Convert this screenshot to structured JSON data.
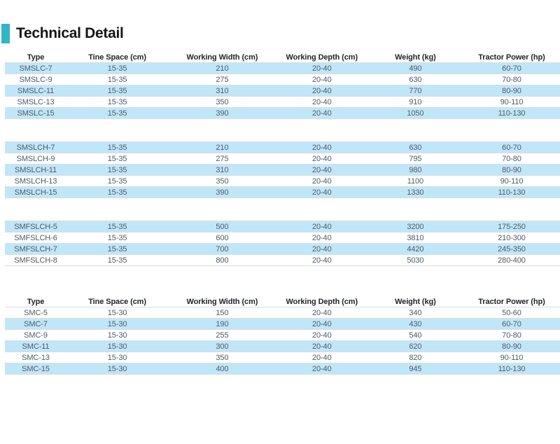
{
  "title": "Technical Detail",
  "colors": {
    "accent": "#31b6c5",
    "row_highlight": "#c0e6f9",
    "row_border": "#dcdcdc",
    "header_text": "#20262b",
    "body_text": "#4e5b66"
  },
  "tables": [
    {
      "name": "sm-slc-series-specs",
      "headers": [
        "Type",
        "Tine Space (cm)",
        "Working Width (cm)",
        "Working Depth (cm)",
        "Weight (kg)",
        "Tractor Power (hp)"
      ],
      "groups": [
        {
          "first_shade": "blue",
          "rows": [
            [
              "SMSLC-7",
              "15-35",
              "210",
              "20-40",
              "490",
              "60-70"
            ],
            [
              "SMSLC-9",
              "15-35",
              "275",
              "20-40",
              "630",
              "70-80"
            ],
            [
              "SMSLC-11",
              "15-35",
              "310",
              "20-40",
              "770",
              "80-90"
            ],
            [
              "SMSLC-13",
              "15-35",
              "350",
              "20-40",
              "910",
              "90-110"
            ],
            [
              "SMSLC-15",
              "15-35",
              "390",
              "20-40",
              "1050",
              "110-130"
            ]
          ]
        },
        {
          "first_shade": "blue",
          "rows": [
            [
              "SMSLCH-7",
              "15-35",
              "210",
              "20-40",
              "630",
              "60-70"
            ],
            [
              "SMSLCH-9",
              "15-35",
              "275",
              "20-40",
              "795",
              "70-80"
            ],
            [
              "SMSLCH-11",
              "15-35",
              "310",
              "20-40",
              "980",
              "80-90"
            ],
            [
              "SMSLCH-13",
              "15-35",
              "350",
              "20-40",
              "1100",
              "90-110"
            ],
            [
              "SMSLCH-15",
              "15-35",
              "390",
              "20-40",
              "1330",
              "110-130"
            ]
          ]
        },
        {
          "first_shade": "blue",
          "rows": [
            [
              "SMFSLCH-5",
              "15-35",
              "500",
              "20-40",
              "3200",
              "175-250"
            ],
            [
              "SMFSLCH-6",
              "15-35",
              "600",
              "20-40",
              "3810",
              "210-300"
            ],
            [
              "SMFSLCH-7",
              "15-35",
              "700",
              "20-40",
              "4420",
              "245-350"
            ],
            [
              "SMFSLCH-8",
              "15-35",
              "800",
              "20-40",
              "5030",
              "280-400"
            ]
          ]
        }
      ]
    },
    {
      "name": "smc-series-specs",
      "headers": [
        "Type",
        "Tine Space (cm)",
        "Working Width (cm)",
        "Working Depth (cm)",
        "Weight (kg)",
        "Tractor Power (hp)"
      ],
      "groups": [
        {
          "first_shade": "white",
          "rows": [
            [
              "SMC-5",
              "15-30",
              "150",
              "20-40",
              "340",
              "50-60"
            ],
            [
              "SMC-7",
              "15-30",
              "190",
              "20-40",
              "430",
              "60-70"
            ],
            [
              "SMC-9",
              "15-30",
              "255",
              "20-40",
              "540",
              "70-80"
            ],
            [
              "SMC-11",
              "15-30",
              "300",
              "20-40",
              "620",
              "80-90"
            ],
            [
              "SMC-13",
              "15-30",
              "350",
              "20-40",
              "820",
              "90-110"
            ],
            [
              "SMC-15",
              "15-30",
              "400",
              "20-40",
              "945",
              "110-130"
            ]
          ]
        }
      ]
    }
  ]
}
